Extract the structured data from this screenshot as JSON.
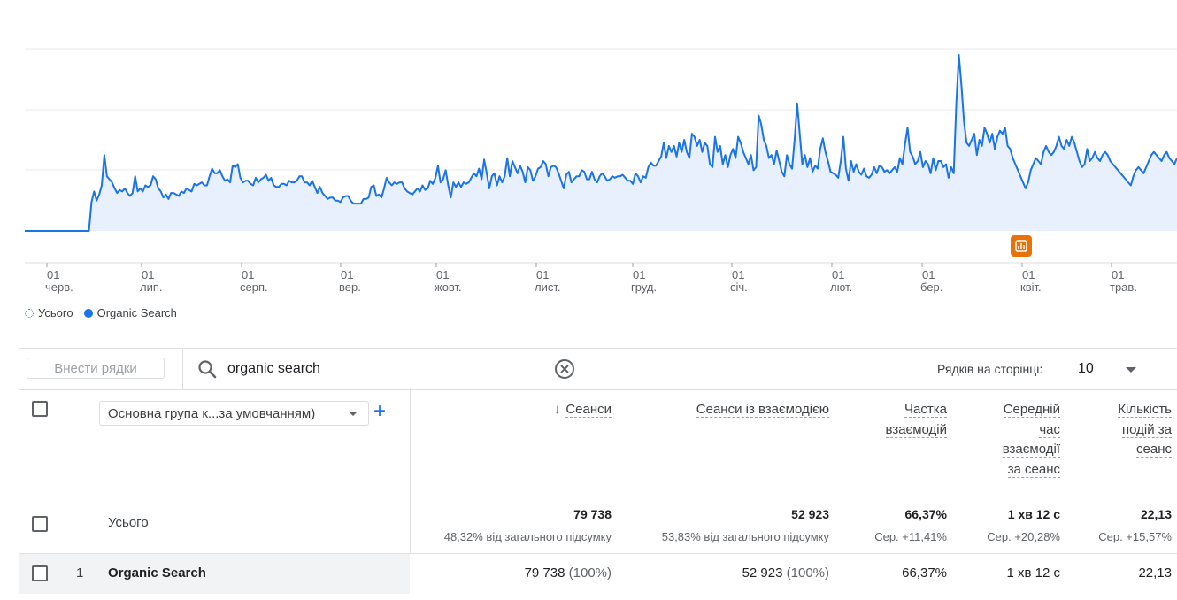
{
  "chart_data": {
    "type": "line",
    "x_tick_labels": [
      {
        "day": "01",
        "month": "черв."
      },
      {
        "day": "01",
        "month": "лип."
      },
      {
        "day": "01",
        "month": "серп."
      },
      {
        "day": "01",
        "month": "вер."
      },
      {
        "day": "01",
        "month": "жовт."
      },
      {
        "day": "01",
        "month": "лист."
      },
      {
        "day": "01",
        "month": "груд."
      },
      {
        "day": "01",
        "month": "січ."
      },
      {
        "day": "01",
        "month": "лют."
      },
      {
        "day": "01",
        "month": "бер."
      },
      {
        "day": "01",
        "month": "квіт."
      },
      {
        "day": "01",
        "month": "трав."
      }
    ],
    "grid": true,
    "ylim": [
      0,
      600
    ],
    "series": [
      {
        "name": "Organic Search",
        "color": "#1a73e8",
        "fill": "#e8f0fe",
        "values": [
          0,
          0,
          0,
          0,
          0,
          0,
          0,
          0,
          0,
          0,
          0,
          0,
          0,
          0,
          0,
          0,
          0,
          0,
          0,
          0,
          0,
          0,
          0,
          0,
          0,
          0,
          95,
          130,
          100,
          120,
          150,
          250,
          180,
          170,
          160,
          140,
          125,
          135,
          130,
          140,
          125,
          115,
          125,
          180,
          130,
          140,
          130,
          150,
          145,
          150,
          180,
          170,
          140,
          130,
          110,
          120,
          105,
          125,
          125,
          120,
          115,
          130,
          125,
          140,
          135,
          130,
          155,
          150,
          155,
          160,
          150,
          150,
          180,
          205,
          190,
          190,
          200,
          180,
          165,
          170,
          160,
          215,
          210,
          220,
          175,
          160,
          165,
          165,
          155,
          150,
          175,
          160,
          170,
          175,
          185,
          165,
          175,
          150,
          145,
          145,
          155,
          155,
          150,
          165,
          160,
          160,
          165,
          180,
          180,
          160,
          160,
          150,
          165,
          145,
          125,
          145,
          125,
          115,
          105,
          110,
          110,
          100,
          100,
          95,
          110,
          115,
          115,
          100,
          90,
          90,
          90,
          90,
          105,
          105,
          110,
          145,
          150,
          115,
          120,
          110,
          140,
          175,
          160,
          150,
          160,
          155,
          160,
          160,
          140,
          130,
          125,
          120,
          130,
          140,
          130,
          150,
          135,
          140,
          165,
          155,
          175,
          215,
          160,
          170,
          200,
          150,
          110,
          160,
          145,
          160,
          145,
          160,
          155,
          160,
          175,
          190,
          180,
          205,
          170,
          235,
          190,
          140,
          180,
          190,
          150,
          180,
          160,
          180,
          240,
          180,
          230,
          210,
          190,
          215,
          195,
          160,
          210,
          200,
          165,
          180,
          205,
          210,
          230,
          220,
          180,
          210,
          215,
          210,
          190,
          165,
          140,
          185,
          195,
          160,
          170,
          180,
          180,
          200,
          195,
          170,
          170,
          195,
          170,
          160,
          180,
          190,
          180,
          165,
          170,
          180,
          175,
          180,
          180,
          185,
          175,
          165,
          165,
          155,
          190,
          180,
          160,
          180,
          175,
          210,
          225,
          215,
          215,
          230,
          245,
          290,
          240,
          280,
          260,
          280,
          245,
          290,
          260,
          300,
          260,
          240,
          320,
          310,
          280,
          300,
          260,
          290,
          280,
          220,
          210,
          310,
          260,
          280,
          220,
          250,
          210,
          250,
          270,
          240,
          310,
          290,
          260,
          240,
          220,
          250,
          200,
          210,
          380,
          350,
          300,
          280,
          240,
          250,
          220,
          265,
          230,
          195,
          180,
          250,
          220,
          205,
          300,
          420,
          320,
          220,
          250,
          210,
          240,
          195,
          215,
          205,
          270,
          305,
          260,
          230,
          195,
          190,
          185,
          175,
          230,
          310,
          205,
          165,
          230,
          195,
          220,
          195,
          185,
          205,
          180,
          175,
          185,
          210,
          190,
          215,
          210,
          195,
          200,
          190,
          200,
          210,
          195,
          240,
          220,
          285,
          340,
          260,
          245,
          220,
          230,
          260,
          210,
          230,
          220,
          190,
          240,
          200,
          230,
          230,
          210,
          220,
          175,
          210,
          190,
          420,
          580,
          480,
          360,
          290,
          280,
          300,
          320,
          250,
          300,
          280,
          340,
          320,
          290,
          320,
          270,
          310,
          330,
          320,
          340,
          280,
          270,
          240,
          220,
          200,
          180,
          160,
          140,
          160,
          200,
          220,
          240,
          230,
          220,
          260,
          280,
          260,
          250,
          260,
          280,
          310,
          280,
          270,
          300,
          280,
          310,
          290,
          260,
          230,
          210,
          220,
          270,
          230,
          240,
          260,
          240,
          230,
          250,
          260,
          250,
          230,
          220,
          210,
          200,
          190,
          180,
          170,
          160,
          150,
          180,
          200,
          210,
          200,
          190,
          210,
          230,
          250,
          260,
          250,
          240,
          230,
          250,
          260,
          240,
          230,
          220,
          240
        ]
      }
    ]
  },
  "legend": {
    "total_label": "Усього",
    "series_label": "Organic Search"
  },
  "toolbar": {
    "add_rows_label": "Внести рядки",
    "search_value": "organic search",
    "rows_per_page_label": "Рядків на сторінці:",
    "rows_per_page_value": "10"
  },
  "table": {
    "dimension_select": "Основна група к...за умовчанням)",
    "columns": [
      "Сеанси",
      "Сеанси із взаємодією",
      "Частка взаємодій",
      "Середній час взаємодії за сеанс",
      "Кількість подій за сеанс"
    ],
    "column_lines": [
      [
        "Сеанси"
      ],
      [
        "Сеанси із взаємодією"
      ],
      [
        "Частка",
        "взаємодій"
      ],
      [
        "Середній",
        "час",
        "взаємодії",
        "за сеанс"
      ],
      [
        "Кількість",
        "подій за",
        "сеанс"
      ]
    ],
    "totals": {
      "label": "Усього",
      "values": [
        "79 738",
        "52 923",
        "66,37%",
        "1 хв 12 с",
        "22,13"
      ],
      "subs": [
        "48,32% від загального підсумку",
        "53,83% від загального підсумку",
        "Сер. +11,41%",
        "Сер. +20,28%",
        "Сер. +15,57%"
      ]
    },
    "rows": [
      {
        "index": "1",
        "name": "Organic Search",
        "values": [
          "79 738",
          "52 923",
          "66,37%",
          "1 хв 12 с",
          "22,13"
        ],
        "pcts": [
          "(100%)",
          "(100%)",
          "",
          "",
          ""
        ]
      }
    ]
  },
  "colors": {
    "accent": "#1a73e8",
    "annotation": "#e8710a"
  }
}
